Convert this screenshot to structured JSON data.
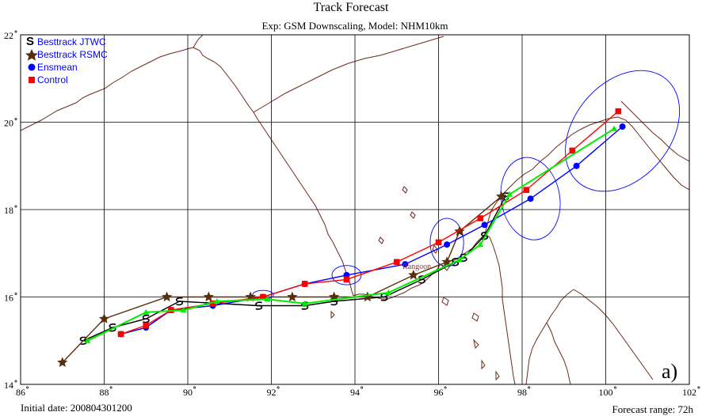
{
  "chart_data": {
    "type": "line",
    "title": "Track Forecast",
    "subtitle": "Exp: GSM Downscaling, Model: NHM10km",
    "panel_label": "a)",
    "initial_date_label": "Initial date: 200804301200",
    "forecast_range_label": "Forecast range: 72h",
    "place_label": "Rangoon",
    "xlim": [
      86,
      102
    ],
    "ylim": [
      14,
      22
    ],
    "x_ticks": [
      86,
      88,
      90,
      92,
      94,
      96,
      98,
      100,
      102
    ],
    "y_ticks": [
      14,
      16,
      18,
      20,
      22
    ],
    "x_tick_labels": [
      "86",
      "88",
      "90",
      "92",
      "94",
      "96",
      "98",
      "100",
      "102"
    ],
    "y_tick_labels": [
      "14",
      "16",
      "18",
      "20",
      "22"
    ],
    "grid": true,
    "legend": "top-left",
    "series": [
      {
        "name": "Besttrack JTWC",
        "color": "#000000",
        "marker": "typhoon-symbol",
        "x": [
          87.5,
          88.2,
          89.0,
          89.8,
          91.7,
          92.8,
          93.5,
          94.7,
          95.6,
          96.4,
          96.6,
          97.1,
          97.6
        ],
        "y": [
          15.0,
          15.3,
          15.5,
          15.9,
          15.8,
          15.8,
          15.9,
          16.0,
          16.4,
          16.8,
          16.9,
          17.4,
          18.3
        ]
      },
      {
        "name": "Besttrack RSMC",
        "color": "#5a2e0a",
        "marker": "star",
        "x": [
          87.0,
          88.0,
          89.5,
          90.5,
          91.5,
          92.5,
          93.5,
          94.3,
          95.4,
          96.2,
          96.5,
          97.5
        ],
        "y": [
          14.5,
          15.5,
          16.0,
          16.0,
          16.0,
          16.0,
          16.0,
          16.0,
          16.5,
          16.8,
          17.5,
          18.3
        ]
      },
      {
        "name": "Ensmean",
        "color": "#0000ff",
        "marker": "circle",
        "x": [
          88.4,
          89.0,
          89.6,
          90.6,
          91.8,
          92.8,
          93.8,
          95.2,
          96.2,
          97.1,
          98.2,
          99.3,
          100.4
        ],
        "y": [
          15.15,
          15.3,
          15.7,
          15.8,
          16.0,
          16.3,
          16.5,
          16.75,
          17.2,
          17.65,
          18.25,
          19.0,
          19.9
        ]
      },
      {
        "name": "Control",
        "color": "#ff0000",
        "marker": "square",
        "x": [
          88.4,
          89.0,
          89.6,
          90.6,
          91.8,
          92.8,
          93.8,
          95.0,
          96.0,
          97.0,
          98.1,
          99.2,
          100.3
        ],
        "y": [
          15.15,
          15.35,
          15.7,
          15.85,
          16.0,
          16.3,
          16.4,
          16.8,
          17.25,
          17.8,
          18.45,
          19.35,
          20.25
        ]
      },
      {
        "name": "",
        "color": "#00ee00",
        "marker": "triangle",
        "x": [
          87.6,
          89.0,
          89.9,
          90.7,
          91.9,
          92.8,
          94.8,
          96.5,
          97.0,
          97.7,
          100.2
        ],
        "y": [
          15.0,
          15.65,
          15.7,
          15.9,
          15.95,
          15.85,
          16.1,
          16.85,
          17.2,
          18.35,
          19.85
        ]
      }
    ],
    "ellipses": [
      {
        "cx": 91.8,
        "cy": 16.05,
        "rx": 0.25,
        "ry": 0.1,
        "angle": 0
      },
      {
        "cx": 93.8,
        "cy": 16.5,
        "rx": 0.35,
        "ry": 0.22,
        "angle": 0
      },
      {
        "cx": 96.2,
        "cy": 17.25,
        "rx": 0.4,
        "ry": 0.55,
        "angle": 0
      },
      {
        "cx": 98.2,
        "cy": 18.25,
        "rx": 0.7,
        "ry": 0.95,
        "angle": -10
      },
      {
        "cx": 100.4,
        "cy": 19.8,
        "rx": 1.15,
        "ry": 1.55,
        "angle": 40
      }
    ]
  }
}
